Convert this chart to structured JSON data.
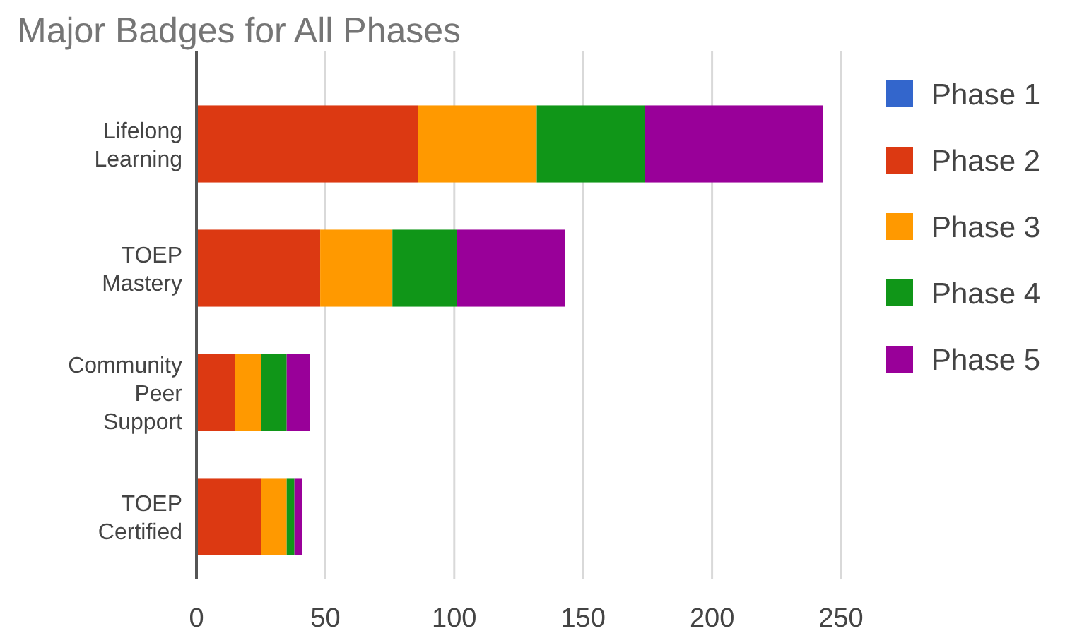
{
  "chart_data": {
    "type": "bar",
    "title": "Major Badges for All Phases",
    "orientation": "horizontal",
    "stacked": true,
    "categories": [
      "Lifelong Learning",
      "TOEP Mastery",
      "Community Peer Support",
      "TOEP Certified"
    ],
    "series": [
      {
        "name": "Phase 1",
        "color": "#3366cc",
        "values": [
          0,
          0,
          0,
          0
        ]
      },
      {
        "name": "Phase 2",
        "color": "#dc3912",
        "values": [
          86,
          48,
          15,
          25
        ]
      },
      {
        "name": "Phase 3",
        "color": "#ff9900",
        "values": [
          46,
          28,
          10,
          10
        ]
      },
      {
        "name": "Phase 4",
        "color": "#109618",
        "values": [
          42,
          25,
          10,
          3
        ]
      },
      {
        "name": "Phase 5",
        "color": "#990099",
        "values": [
          69,
          42,
          9,
          3
        ]
      }
    ],
    "xlim": [
      0,
      250
    ],
    "xticks": [
      0,
      50,
      100,
      150,
      200,
      250
    ],
    "grid": "x",
    "legend": "right"
  }
}
